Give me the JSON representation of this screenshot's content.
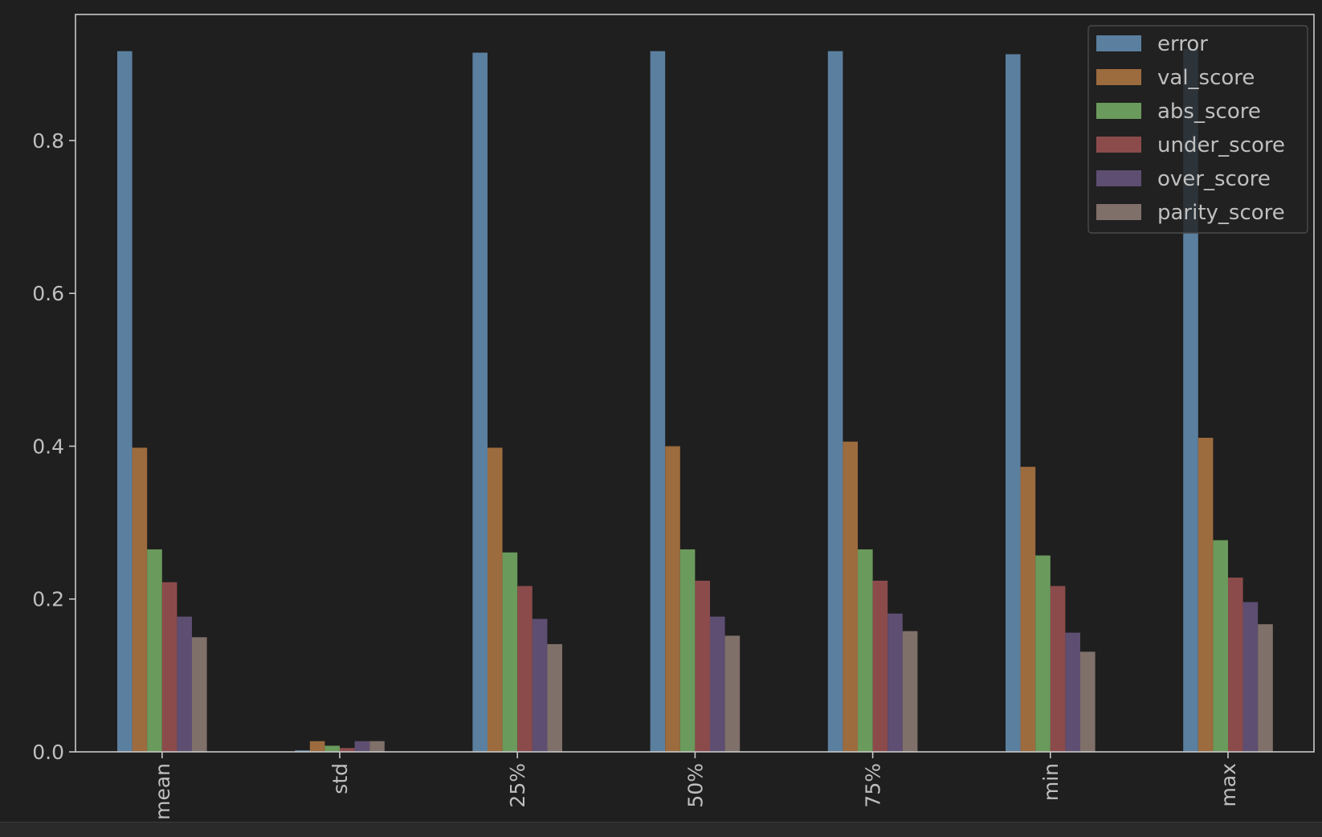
{
  "chart_data": {
    "type": "bar",
    "categories": [
      "mean",
      "std",
      "25%",
      "50%",
      "75%",
      "min",
      "max"
    ],
    "series": [
      {
        "name": "error",
        "values": [
          0.917,
          0.002,
          0.915,
          0.917,
          0.917,
          0.913,
          0.92
        ]
      },
      {
        "name": "val_score",
        "values": [
          0.398,
          0.014,
          0.398,
          0.4,
          0.406,
          0.373,
          0.411
        ]
      },
      {
        "name": "abs_score",
        "values": [
          0.265,
          0.008,
          0.261,
          0.265,
          0.265,
          0.257,
          0.277
        ]
      },
      {
        "name": "under_score",
        "values": [
          0.222,
          0.005,
          0.217,
          0.224,
          0.224,
          0.217,
          0.228
        ]
      },
      {
        "name": "over_score",
        "values": [
          0.177,
          0.014,
          0.174,
          0.177,
          0.181,
          0.156,
          0.196
        ]
      },
      {
        "name": "parity_score",
        "values": [
          0.15,
          0.014,
          0.141,
          0.152,
          0.158,
          0.131,
          0.167
        ]
      }
    ],
    "colors": [
      "#5b7f9f",
      "#9c6b3e",
      "#6a9a5c",
      "#8c4b4b",
      "#5e4e72",
      "#80706a"
    ],
    "yticks": [
      "0.0",
      "0.2",
      "0.4",
      "0.6",
      "0.8"
    ],
    "ylim": [
      0,
      0.965
    ],
    "xlabel": "",
    "ylabel": "",
    "title": "",
    "legend_position": "top-right",
    "grid": false,
    "theme": {
      "background": "#1f1f1f",
      "axes_edge": "#c8c8c8",
      "text": "#bfbfbf"
    }
  }
}
